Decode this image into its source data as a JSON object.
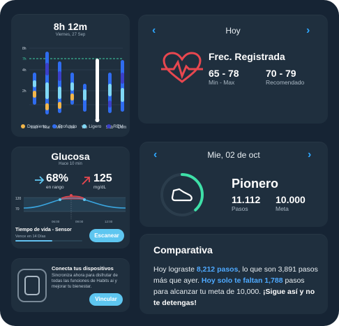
{
  "sleep": {
    "title": "8h 12m",
    "subtitle": "Viernes, 27 Sep",
    "y_ticks": [
      "8h",
      "7h",
      "4h",
      "2h"
    ],
    "days": [
      "Lun",
      "Mar",
      "Mié",
      "Jue",
      "Vie",
      "Sáb",
      "Dom"
    ],
    "legend": [
      {
        "label": "Despierto",
        "color": "#f2b64a"
      },
      {
        "label": "Profundo",
        "color": "#2f6cf0"
      },
      {
        "label": "Ligero",
        "color": "#7fd8f5"
      },
      {
        "label": "REM",
        "color": "#3a3fc8"
      }
    ]
  },
  "glucose": {
    "title": "Glucosa",
    "subtitle": "Hace 10 min",
    "in_range_value": "68%",
    "in_range_label": "en rango",
    "mgdl_value": "125",
    "mgdl_label": "mg/dL",
    "y_ticks": [
      "120",
      "70"
    ],
    "x_ticks": [
      "06:00",
      "09:00",
      "12:00"
    ],
    "sensor_title": "Tiempo de vida - Sensor",
    "sensor_sub": "Vence en 14 Días",
    "sensor_progress": 0.55,
    "scan_button": "Escanear"
  },
  "devices": {
    "title": "Conecta tus dispositivos",
    "description": "Sincroniza ahora para disfrutar de todas las funciones de Habits ai y mejorar tu bienestar.",
    "button": "Vincular"
  },
  "heart": {
    "header": "Hoy",
    "title": "Frec. Registrada",
    "value1": "65 - 78",
    "label1": "Min - Max",
    "value2": "70 - 79",
    "label2": "Recomendado",
    "accent": "#e8474f"
  },
  "activity": {
    "header": "Mie, 02 de oct",
    "title": "Pionero",
    "steps_value": "11.112",
    "steps_label": "Pasos",
    "goal_value": "10.000",
    "goal_label": "Meta",
    "progress": 1.0,
    "accent": "#3ee0a8"
  },
  "compare": {
    "title": "Comparativa",
    "p1": "Hoy lograste ",
    "hl1": "8,212 pasos",
    "p2": ", lo que son 3,891 pasos más que ayer. ",
    "hl2": "Hoy solo te faltan 1,788",
    "p3": " pasos para alcanzar tu meta de 10,000. ",
    "b1": "¡Sigue así y no te detengas!"
  }
}
